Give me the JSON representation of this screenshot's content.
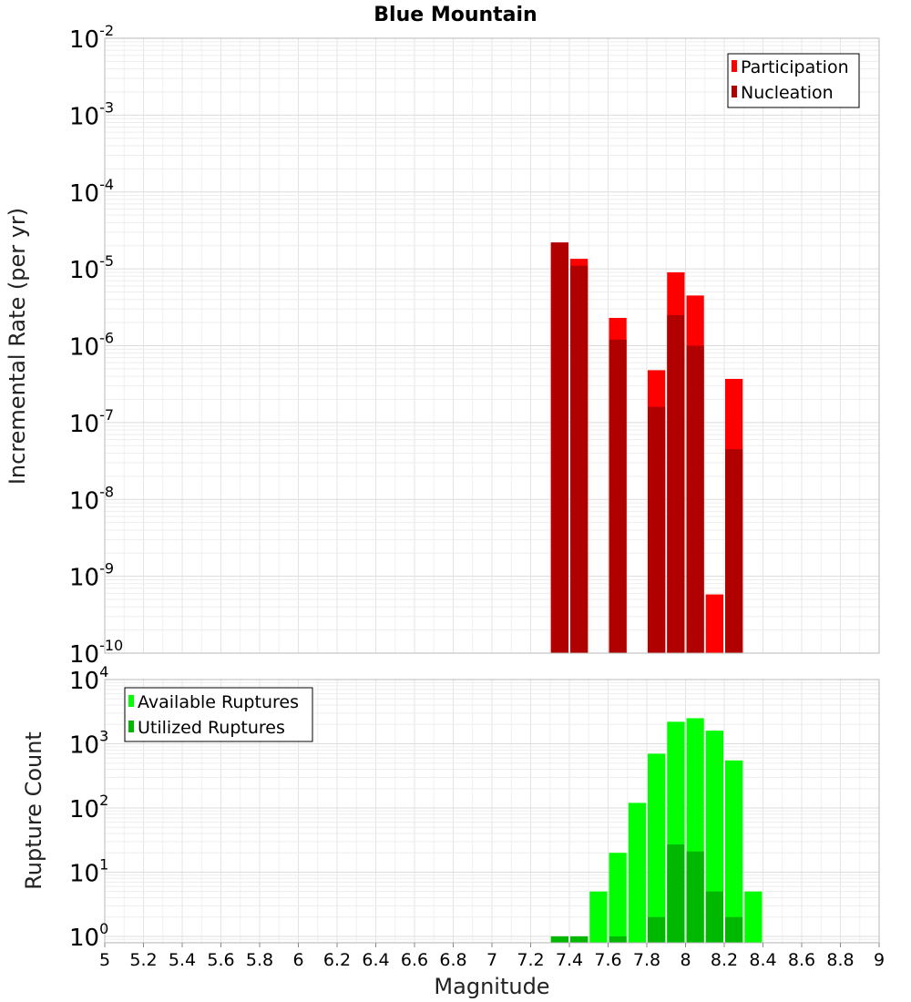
{
  "chart_data": {
    "type": "bar",
    "title": "Blue Mountain",
    "xlabel": "Magnitude",
    "xlim": [
      5,
      9
    ],
    "x_ticks": [
      "5",
      "5.2",
      "5.4",
      "5.6",
      "5.8",
      "6",
      "6.2",
      "6.4",
      "6.6",
      "6.8",
      "7",
      "7.2",
      "7.4",
      "7.6",
      "7.8",
      "8",
      "8.2",
      "8.4",
      "8.6",
      "8.8",
      "9"
    ],
    "panels": [
      {
        "id": "rate",
        "ylabel": "Incremental Rate (per yr)",
        "yscale": "log",
        "ylim_exp": [
          -10,
          -2
        ],
        "y_ticks": [
          {
            "base": "10",
            "exp": "-2"
          },
          {
            "base": "10",
            "exp": "-3"
          },
          {
            "base": "10",
            "exp": "-4"
          },
          {
            "base": "10",
            "exp": "-5"
          },
          {
            "base": "10",
            "exp": "-6"
          },
          {
            "base": "10",
            "exp": "-7"
          },
          {
            "base": "10",
            "exp": "-8"
          },
          {
            "base": "10",
            "exp": "-9"
          },
          {
            "base": "10",
            "exp": "-10"
          }
        ],
        "legend": {
          "position": "top-right",
          "entries": [
            "Participation",
            "Nucleation"
          ]
        },
        "series": [
          {
            "name": "Participation",
            "color": "#ff0000",
            "x": [
              7.35,
              7.45,
              7.65,
              7.85,
              7.95,
              8.05,
              8.15,
              8.25
            ],
            "values": [
              2.2e-05,
              1.35e-05,
              2.3e-06,
              4.8e-07,
              9e-06,
              4.5e-06,
              5.8e-10,
              3.7e-07
            ]
          },
          {
            "name": "Nucleation",
            "color": "#b00000",
            "x": [
              7.35,
              7.45,
              7.65,
              7.85,
              7.95,
              8.05,
              8.15,
              8.25
            ],
            "values": [
              2.2e-05,
              1.1e-05,
              1.2e-06,
              1.6e-07,
              2.5e-06,
              1e-06,
              1e-10,
              4.5e-08
            ]
          }
        ]
      },
      {
        "id": "count",
        "ylabel": "Rupture Count",
        "yscale": "log",
        "ylim_exp": [
          -0.1,
          4
        ],
        "y_ticks": [
          {
            "base": "10",
            "exp": "4"
          },
          {
            "base": "10",
            "exp": "3"
          },
          {
            "base": "10",
            "exp": "2"
          },
          {
            "base": "10",
            "exp": "1"
          },
          {
            "base": "10",
            "exp": "0"
          }
        ],
        "legend": {
          "position": "top-left",
          "entries": [
            "Available Ruptures",
            "Utilized Ruptures"
          ]
        },
        "series": [
          {
            "name": "Available Ruptures",
            "color": "#00ff00",
            "x": [
              7.35,
              7.45,
              7.55,
              7.65,
              7.75,
              7.85,
              7.95,
              8.05,
              8.15,
              8.25,
              8.35
            ],
            "values": [
              1,
              1,
              5,
              20,
              120,
              700,
              2200,
              2500,
              1600,
              550,
              5
            ]
          },
          {
            "name": "Utilized Ruptures",
            "color": "#00b800",
            "x": [
              7.35,
              7.45,
              7.65,
              7.85,
              7.95,
              8.05,
              8.15,
              8.25
            ],
            "values": [
              1,
              1,
              1,
              2,
              27,
              21,
              5,
              2
            ]
          }
        ]
      }
    ]
  }
}
